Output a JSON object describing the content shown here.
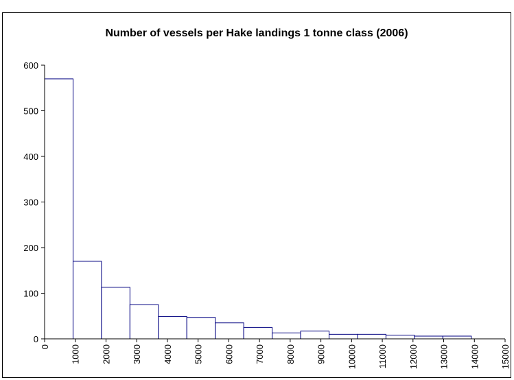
{
  "chart_data": {
    "type": "histogram",
    "title": "Number of vessels per Hake landings 1 tonne class (2006)",
    "bins": [
      0,
      927,
      1853,
      2780,
      3707,
      4633,
      5560,
      6487,
      7413,
      8340,
      9267,
      10193,
      11120,
      12047,
      12973,
      13900
    ],
    "values": [
      570,
      170,
      113,
      75,
      49,
      47,
      35,
      25,
      13,
      17,
      10,
      10,
      8,
      6,
      6
    ],
    "color": "#ffffff",
    "edge_color": "#000080",
    "xlim": [
      0,
      15000
    ],
    "xticks": [
      0,
      1000,
      2000,
      3000,
      4000,
      5000,
      6000,
      7000,
      8000,
      9000,
      10000,
      11000,
      12000,
      13000,
      14000,
      15000
    ],
    "ylim": [
      0,
      600
    ],
    "yticks": [
      0,
      100,
      200,
      300,
      400,
      500,
      600
    ],
    "grid": false
  }
}
